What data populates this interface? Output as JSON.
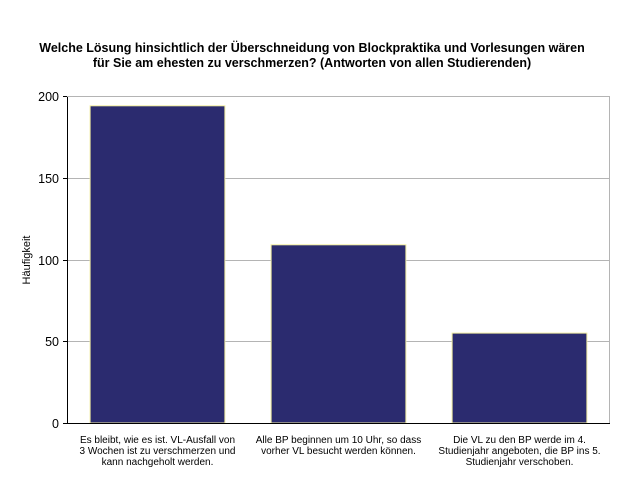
{
  "chart_data": {
    "type": "bar",
    "title": "Welche Lösung hinsichtlich der Überschneidung von Blockpraktika und Vorlesungen wären für Sie am ehesten zu verschmerzen? (Antworten von allen Studierenden)",
    "title_lines": [
      "Welche Lösung hinsichtlich der Überschneidung von Blockpraktika und Vorlesungen wären",
      "für Sie am ehesten zu verschmerzen? (Antworten von allen Studierenden)"
    ],
    "xlabel": "",
    "ylabel": "Häufigkeit",
    "ylim": [
      0,
      200
    ],
    "yticks": [
      0,
      50,
      100,
      150,
      200
    ],
    "grid": true,
    "categories": [
      "Es bleibt, wie es ist. VL-Ausfall von 3 Wochen ist zu verschmerzen und kann nachgeholt werden.",
      "Alle BP beginnen um 10 Uhr, so dass vorher VL besucht werden können.",
      "Die VL zu den BP werde im 4. Studienjahr angeboten, die BP ins 5. Studienjahr verschoben."
    ],
    "category_label_lines": [
      [
        "Es bleibt, wie es ist. VL-Ausfall von",
        "3 Wochen ist zu verschmerzen und",
        "kann nachgeholt werden."
      ],
      [
        "Alle BP beginnen um 10 Uhr, so dass",
        "vorher VL besucht werden können."
      ],
      [
        "Die VL zu den BP werde im 4.",
        "Studienjahr angeboten, die BP ins 5.",
        "Studienjahr verschoben."
      ]
    ],
    "values": [
      194,
      109,
      55
    ],
    "bar_color": "#2b2b6f",
    "bar_outline_color": "#f2eea0",
    "plot_background": "#ffffff",
    "gridline_color": "#b4b4b4"
  }
}
